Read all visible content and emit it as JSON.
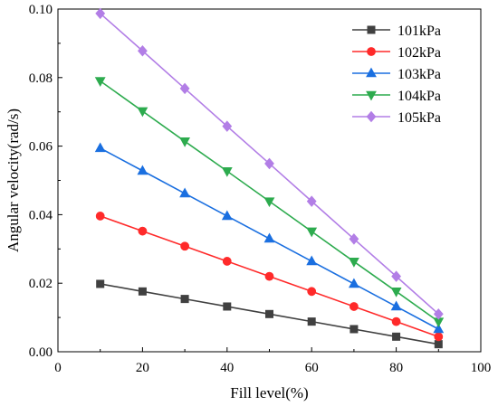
{
  "chart_data": {
    "type": "line",
    "xlabel": "Fill level(%)",
    "ylabel": "Angular velocity(rad/s)",
    "xlim": [
      0,
      100
    ],
    "ylim": [
      0,
      0.1
    ],
    "xticks": [
      0,
      20,
      40,
      60,
      80,
      100
    ],
    "yticks": [
      0.0,
      0.02,
      0.04,
      0.06,
      0.08,
      0.1
    ],
    "ytick_labels": [
      "0.00",
      "0.02",
      "0.04",
      "0.06",
      "0.08",
      "0.10"
    ],
    "grid": false,
    "legend_position": "top-right",
    "x": [
      10,
      20,
      30,
      40,
      50,
      60,
      70,
      80,
      90
    ],
    "series": [
      {
        "name": "101kPa",
        "color": "#404040",
        "marker": "square",
        "values": [
          0.0198,
          0.0176,
          0.0154,
          0.0132,
          0.011,
          0.0088,
          0.0066,
          0.0044,
          0.0022
        ]
      },
      {
        "name": "102kPa",
        "color": "#ff2a2a",
        "marker": "circle",
        "values": [
          0.0396,
          0.0352,
          0.0308,
          0.0264,
          0.022,
          0.0176,
          0.0132,
          0.0088,
          0.0044
        ]
      },
      {
        "name": "103kPa",
        "color": "#1a6fe0",
        "marker": "triangle-up",
        "values": [
          0.0594,
          0.0528,
          0.0462,
          0.0396,
          0.033,
          0.0264,
          0.0198,
          0.0132,
          0.0066
        ]
      },
      {
        "name": "104kPa",
        "color": "#2dab4e",
        "marker": "triangle-down",
        "values": [
          0.079,
          0.0702,
          0.0614,
          0.0527,
          0.0439,
          0.0351,
          0.0263,
          0.0176,
          0.0088
        ]
      },
      {
        "name": "105kPa",
        "color": "#b27ee6",
        "marker": "diamond",
        "values": [
          0.0987,
          0.0878,
          0.0768,
          0.0658,
          0.0549,
          0.0439,
          0.0329,
          0.022,
          0.011
        ]
      }
    ]
  }
}
